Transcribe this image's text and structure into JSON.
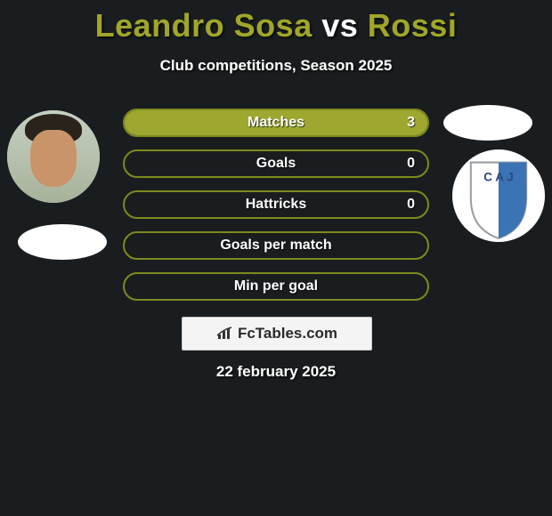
{
  "title": {
    "player_a": "Leandro Sosa",
    "vs": "vs",
    "player_b": "Rossi",
    "color_a": "#a0a62a",
    "color_vs": "#ffffff",
    "color_b": "#a0a62a"
  },
  "subtitle": "Club competitions, Season 2025",
  "bars": {
    "border_color": "#7e8a1e",
    "fill_color": "#9ea831",
    "items": [
      {
        "label": "Matches",
        "value": "3",
        "fill_pct": 100
      },
      {
        "label": "Goals",
        "value": "0",
        "fill_pct": 0
      },
      {
        "label": "Hattricks",
        "value": "0",
        "fill_pct": 0
      },
      {
        "label": "Goals per match",
        "value": "",
        "fill_pct": 0
      },
      {
        "label": "Min per goal",
        "value": "",
        "fill_pct": 0
      }
    ]
  },
  "badge_right": {
    "bg": "#ffffff",
    "stripe": "#3a74b5",
    "outline": "#9aa0a6"
  },
  "brand": {
    "text": "FcTables.com",
    "icon_color": "#333333",
    "box_bg": "#f4f4f4",
    "box_border": "#c9c9c9"
  },
  "date": "22 february 2025",
  "colors": {
    "page_bg": "#1a1d1f",
    "text_white": "#ffffff"
  }
}
